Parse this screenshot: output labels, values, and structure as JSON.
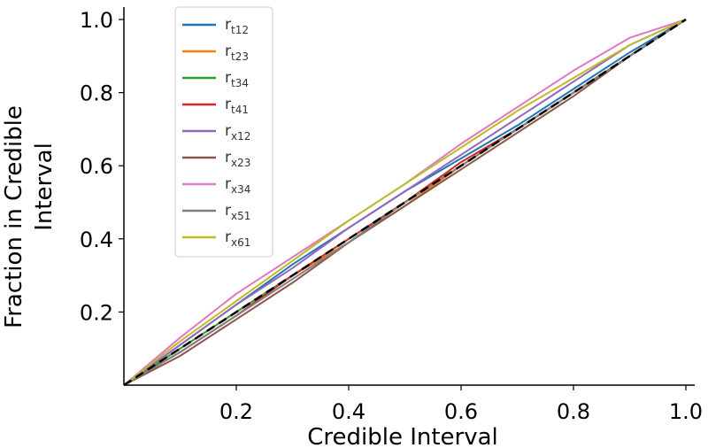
{
  "chart_data": {
    "type": "line",
    "title": "",
    "xlabel": "Credible Interval",
    "ylabel_lines": [
      "Fraction in Credible",
      "Interval"
    ],
    "xlim": [
      0,
      1
    ],
    "ylim": [
      0,
      1
    ],
    "xticks": [
      "0.2",
      "0.4",
      "0.6",
      "0.8",
      "1.0"
    ],
    "yticks": [
      "0.2",
      "0.4",
      "0.6",
      "0.8",
      "1.0"
    ],
    "grid": false,
    "legend_position": "top-left",
    "reference_line": {
      "x": [
        0,
        1
      ],
      "y": [
        0,
        1
      ],
      "style": "dashed",
      "color": "#000000"
    },
    "series": [
      {
        "base": "r",
        "sub": "t12",
        "color": "#1f77b4",
        "x": [
          0,
          0.1,
          0.2,
          0.3,
          0.4,
          0.5,
          0.6,
          0.7,
          0.8,
          0.9,
          1.0
        ],
        "y": [
          0,
          0.11,
          0.22,
          0.33,
          0.43,
          0.53,
          0.62,
          0.71,
          0.81,
          0.91,
          1.0
        ]
      },
      {
        "base": "r",
        "sub": "t23",
        "color": "#ff7f0e",
        "x": [
          0,
          0.1,
          0.2,
          0.3,
          0.4,
          0.5,
          0.6,
          0.7,
          0.8,
          0.9,
          1.0
        ],
        "y": [
          0,
          0.1,
          0.2,
          0.3,
          0.39,
          0.49,
          0.6,
          0.7,
          0.8,
          0.9,
          1.0
        ]
      },
      {
        "base": "r",
        "sub": "t34",
        "color": "#2ca02c",
        "x": [
          0,
          0.1,
          0.2,
          0.3,
          0.4,
          0.5,
          0.6,
          0.7,
          0.8,
          0.9,
          1.0
        ],
        "y": [
          0,
          0.1,
          0.2,
          0.3,
          0.4,
          0.5,
          0.6,
          0.7,
          0.8,
          0.9,
          1.0
        ]
      },
      {
        "base": "r",
        "sub": "t41",
        "color": "#d62728",
        "x": [
          0,
          0.1,
          0.2,
          0.3,
          0.4,
          0.5,
          0.6,
          0.7,
          0.8,
          0.9,
          1.0
        ],
        "y": [
          0,
          0.09,
          0.19,
          0.3,
          0.4,
          0.5,
          0.61,
          0.7,
          0.8,
          0.9,
          1.0
        ]
      },
      {
        "base": "r",
        "sub": "x12",
        "color": "#9467bd",
        "x": [
          0,
          0.1,
          0.2,
          0.3,
          0.4,
          0.5,
          0.6,
          0.7,
          0.8,
          0.9,
          1.0
        ],
        "y": [
          0,
          0.11,
          0.22,
          0.32,
          0.43,
          0.53,
          0.63,
          0.73,
          0.83,
          0.93,
          1.0
        ]
      },
      {
        "base": "r",
        "sub": "x23",
        "color": "#8c564b",
        "x": [
          0,
          0.1,
          0.2,
          0.3,
          0.4,
          0.5,
          0.6,
          0.7,
          0.8,
          0.9,
          1.0
        ],
        "y": [
          0,
          0.08,
          0.18,
          0.28,
          0.39,
          0.49,
          0.59,
          0.69,
          0.79,
          0.9,
          1.0
        ]
      },
      {
        "base": "r",
        "sub": "x34",
        "color": "#e377c2",
        "x": [
          0,
          0.1,
          0.2,
          0.3,
          0.4,
          0.5,
          0.6,
          0.7,
          0.8,
          0.9,
          1.0
        ],
        "y": [
          0,
          0.13,
          0.25,
          0.35,
          0.45,
          0.55,
          0.66,
          0.76,
          0.86,
          0.95,
          1.0
        ]
      },
      {
        "base": "r",
        "sub": "x51",
        "color": "#7f7f7f",
        "x": [
          0,
          0.1,
          0.2,
          0.3,
          0.4,
          0.5,
          0.6,
          0.7,
          0.8,
          0.9,
          1.0
        ],
        "y": [
          0,
          0.09,
          0.19,
          0.29,
          0.39,
          0.5,
          0.6,
          0.7,
          0.8,
          0.9,
          1.0
        ]
      },
      {
        "base": "r",
        "sub": "x61",
        "color": "#bcbd22",
        "x": [
          0,
          0.1,
          0.2,
          0.3,
          0.4,
          0.5,
          0.6,
          0.7,
          0.8,
          0.9,
          1.0
        ],
        "y": [
          0,
          0.12,
          0.23,
          0.34,
          0.45,
          0.55,
          0.65,
          0.75,
          0.84,
          0.93,
          1.0
        ]
      }
    ]
  }
}
